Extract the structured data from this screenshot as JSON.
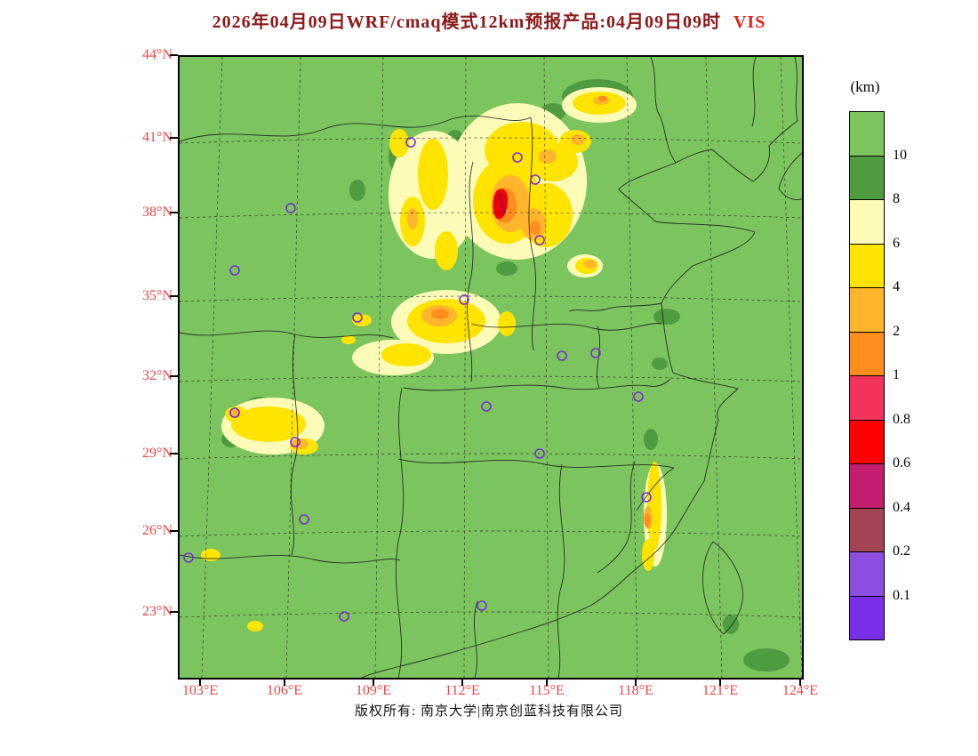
{
  "title": {
    "text": "2026年04月09日WRF/cmaq模式12km预报产品:04月09日09时",
    "suffix": "VIS"
  },
  "axes": {
    "lat_labels": [
      "44°N",
      "41°N",
      "38°N",
      "35°N",
      "32°N",
      "29°N",
      "26°N",
      "23°N"
    ],
    "lon_labels": [
      "103°E",
      "106°E",
      "109°E",
      "112°E",
      "115°E",
      "118°E",
      "121°E",
      "124°E"
    ]
  },
  "legend": {
    "unit": "(km)",
    "tick_labels": [
      "10",
      "8",
      "6",
      "4",
      "2",
      "1",
      "0.8",
      "0.6",
      "0.4",
      "0.2",
      "0.1"
    ],
    "colors": [
      "#7CC45E",
      "#4F9B3F",
      "#FCFCB8",
      "#FFE400",
      "#FFB62C",
      "#FF8E1E",
      "#F2345C",
      "#FF0000",
      "#C41E6E",
      "#A34455",
      "#8C4FE0",
      "#7A2FE8"
    ]
  },
  "footer": {
    "text": "版权所有: 南京大学|南京创蓝科技有限公司"
  },
  "colors": {
    "map_background": "#7CC45E",
    "patch_dark_green": "#4F9B3F",
    "patch_pale_yellow": "#FCFCB8",
    "patch_yellow": "#FFE400",
    "patch_amber": "#FFB62C",
    "patch_orange": "#FF8E1E",
    "patch_red": "#EE0000",
    "patch_crimson": "#B4004E",
    "grid_line": "#1a1a1a",
    "boundary_line": "#1f1f1f",
    "marker": "#7B2FD0",
    "axis_label": "#EE4444",
    "title": "#8B1A1A",
    "title_suffix": "#E82020"
  },
  "map": {
    "station_markers": [
      [
        125,
        170
      ],
      [
        260,
        96
      ],
      [
        380,
        113
      ],
      [
        400,
        138
      ],
      [
        62,
        240
      ],
      [
        405,
        206
      ],
      [
        320,
        273
      ],
      [
        200,
        293
      ],
      [
        345,
        393
      ],
      [
        430,
        336
      ],
      [
        468,
        333
      ],
      [
        516,
        382
      ],
      [
        62,
        400
      ],
      [
        130,
        433
      ],
      [
        405,
        446
      ],
      [
        140,
        520
      ],
      [
        10,
        563
      ],
      [
        340,
        617
      ],
      [
        185,
        629
      ],
      [
        525,
        495
      ]
    ]
  }
}
